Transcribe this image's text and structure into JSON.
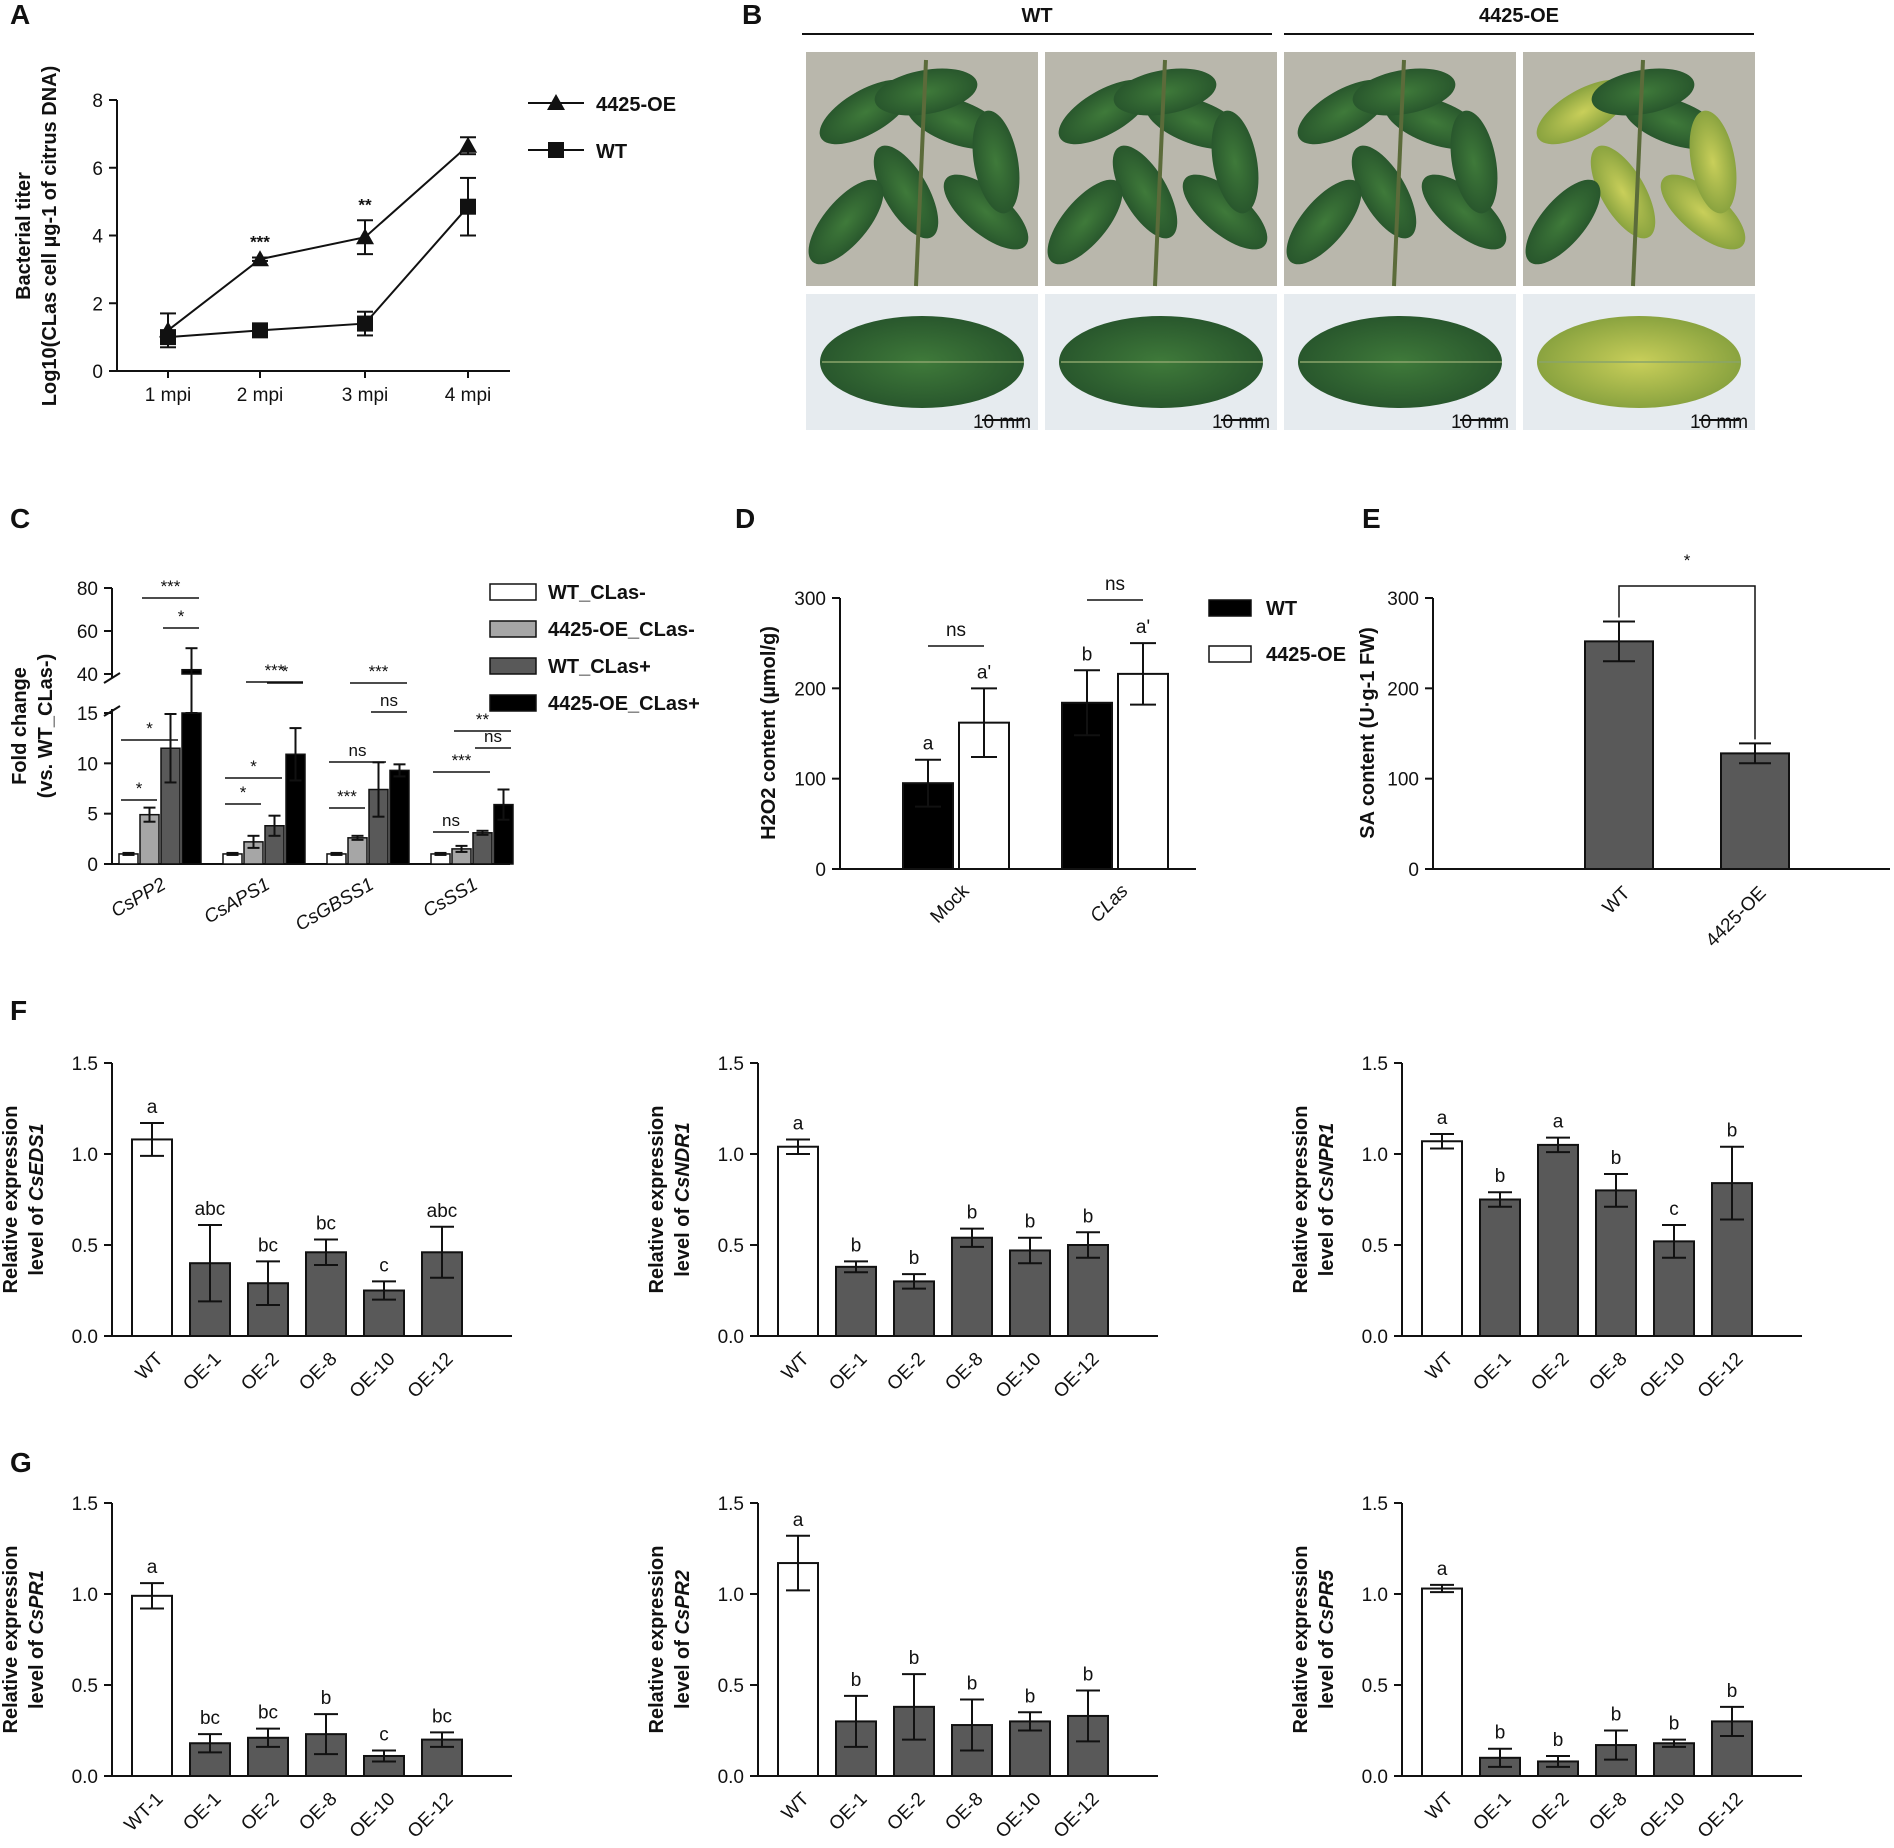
{
  "panel_labels": [
    "A",
    "B",
    "C",
    "D",
    "E",
    "F",
    "G"
  ],
  "colors": {
    "black": "#000000",
    "dark_gray": "#595959",
    "light_gray": "#a6a6a6",
    "white": "#ffffff"
  },
  "photo_panel": {
    "headers": [
      "WT",
      "4425-OE"
    ],
    "scale_bar": "10 mm"
  },
  "chart_data": [
    {
      "id": "A",
      "type": "line",
      "ylabel": "Bacterial titer Log10(CLas cell µg-1 of citrus DNA)",
      "ylabel_lines": [
        "Bacterial titer",
        "Log10(CLas cell µg-1 of citrus DNA)"
      ],
      "categories": [
        "1 mpi",
        "2 mpi",
        "3 mpi",
        "4 mpi"
      ],
      "ylim": [
        0,
        8
      ],
      "yticks": [
        0,
        2,
        4,
        6,
        8
      ],
      "series": [
        {
          "name": "4425-OE",
          "marker": "triangle",
          "values": [
            1.2,
            3.3,
            3.95,
            6.65
          ],
          "errors": [
            0.5,
            0.05,
            0.5,
            0.25
          ]
        },
        {
          "name": "WT",
          "marker": "square",
          "values": [
            1.0,
            1.2,
            1.4,
            4.85
          ],
          "errors": [
            0.1,
            0.1,
            0.35,
            0.85
          ]
        }
      ],
      "significance": [
        {
          "category": "2 mpi",
          "text": "***"
        },
        {
          "category": "3 mpi",
          "text": "**"
        }
      ],
      "legend_position": "top-right"
    },
    {
      "id": "C",
      "type": "bar",
      "ylabel_lines": [
        "Fold change",
        "(vs. WT_CLas-)"
      ],
      "categories": [
        "CsPP2",
        "CsAPS1",
        "CsGBSS1",
        "CsSS1"
      ],
      "axis_break": [
        15,
        40
      ],
      "yticks_lower": [
        0,
        5,
        10,
        15
      ],
      "yticks_upper": [
        40,
        60,
        80
      ],
      "series": [
        {
          "name": "WT_CLas-",
          "color": "#ffffff",
          "values": [
            1.0,
            1.0,
            1.0,
            1.0
          ],
          "errors": [
            0.1,
            0.1,
            0.1,
            0.1
          ]
        },
        {
          "name": "4425-OE_CLas-",
          "color": "#a6a6a6",
          "values": [
            4.9,
            2.2,
            2.6,
            1.5
          ],
          "errors": [
            0.7,
            0.6,
            0.2,
            0.3
          ]
        },
        {
          "name": "WT_CLas+",
          "color": "#595959",
          "values": [
            11.5,
            3.8,
            7.4,
            3.1
          ],
          "errors": [
            3.4,
            1.0,
            2.7,
            0.2
          ]
        },
        {
          "name": "4425-OE_CLas+",
          "color": "#000000",
          "values": [
            42,
            10.9,
            9.3,
            5.9
          ],
          "errors": [
            10,
            2.6,
            0.6,
            1.5
          ]
        }
      ],
      "significance": [
        {
          "category": "CsPP2",
          "pair": [
            0,
            1
          ],
          "text": "*"
        },
        {
          "category": "CsPP2",
          "pair": [
            0,
            2
          ],
          "text": "*"
        },
        {
          "category": "CsPP2",
          "pair": [
            2,
            3
          ],
          "text": "*"
        },
        {
          "category": "CsPP2",
          "pair": [
            1,
            3
          ],
          "text": "***"
        },
        {
          "category": "CsAPS1",
          "pair": [
            0,
            1
          ],
          "text": "*"
        },
        {
          "category": "CsAPS1",
          "pair": [
            0,
            2
          ],
          "text": "*"
        },
        {
          "category": "CsAPS1",
          "pair": [
            2,
            3
          ],
          "text": "*"
        },
        {
          "category": "CsAPS1",
          "pair": [
            1,
            3
          ],
          "text": "***"
        },
        {
          "category": "CsGBSS1",
          "pair": [
            0,
            1
          ],
          "text": "***"
        },
        {
          "category": "CsGBSS1",
          "pair": [
            0,
            2
          ],
          "text": "ns"
        },
        {
          "category": "CsGBSS1",
          "pair": [
            2,
            3
          ],
          "text": "ns"
        },
        {
          "category": "CsGBSS1",
          "pair": [
            1,
            3
          ],
          "text": "***"
        },
        {
          "category": "CsSS1",
          "pair": [
            0,
            1
          ],
          "text": "ns"
        },
        {
          "category": "CsSS1",
          "pair": [
            0,
            2
          ],
          "text": "***"
        },
        {
          "category": "CsSS1",
          "pair": [
            2,
            3
          ],
          "text": "ns"
        },
        {
          "category": "CsSS1",
          "pair": [
            1,
            3
          ],
          "text": "**"
        }
      ],
      "legend_position": "top-right"
    },
    {
      "id": "D",
      "type": "bar",
      "ylabel": "H2O2 content (µmol/g)",
      "categories": [
        "Mock",
        "CLas"
      ],
      "ylim": [
        0,
        300
      ],
      "yticks": [
        0,
        100,
        200,
        300
      ],
      "series": [
        {
          "name": "WT",
          "color": "#000000",
          "values": [
            95,
            184
          ],
          "errors": [
            26,
            36
          ],
          "letters": [
            "a",
            "b"
          ]
        },
        {
          "name": "4425-OE",
          "color": "#ffffff",
          "values": [
            162,
            216
          ],
          "errors": [
            38,
            34
          ],
          "letters": [
            "a'",
            "a'"
          ]
        }
      ],
      "significance": [
        {
          "category": "Mock",
          "text": "ns"
        },
        {
          "category": "CLas",
          "text": "ns"
        }
      ],
      "legend_position": "top-right"
    },
    {
      "id": "E",
      "type": "bar",
      "ylabel": "SA content (U·g-1 FW)",
      "categories": [
        "WT",
        "4425-OE"
      ],
      "ylim": [
        0,
        300
      ],
      "yticks": [
        0,
        100,
        200,
        300
      ],
      "series": [
        {
          "name": "SA content",
          "color": "#595959",
          "values": [
            252,
            128
          ],
          "errors": [
            22,
            11
          ]
        }
      ],
      "significance": [
        {
          "pair": [
            "WT",
            "4425-OE"
          ],
          "text": "*"
        }
      ]
    },
    {
      "id": "F1",
      "type": "bar",
      "ylabel_lines": [
        "Relative expression",
        "level of CsEDS1"
      ],
      "categories": [
        "WT",
        "OE-1",
        "OE-2",
        "OE-8",
        "OE-10",
        "OE-12"
      ],
      "ylim": [
        0,
        1.5
      ],
      "yticks": [
        0.0,
        0.5,
        1.0,
        1.5
      ],
      "values": [
        1.08,
        0.4,
        0.29,
        0.46,
        0.25,
        0.46
      ],
      "errors": [
        0.09,
        0.21,
        0.12,
        0.07,
        0.05,
        0.14
      ],
      "letters": [
        "a",
        "abc",
        "bc",
        "bc",
        "c",
        "abc"
      ]
    },
    {
      "id": "F2",
      "type": "bar",
      "ylabel_lines": [
        "Relative expression",
        "level of CsNDR1"
      ],
      "categories": [
        "WT",
        "OE-1",
        "OE-2",
        "OE-8",
        "OE-10",
        "OE-12"
      ],
      "ylim": [
        0,
        1.5
      ],
      "yticks": [
        0.0,
        0.5,
        1.0,
        1.5
      ],
      "values": [
        1.04,
        0.38,
        0.3,
        0.54,
        0.47,
        0.5
      ],
      "errors": [
        0.04,
        0.03,
        0.04,
        0.05,
        0.07,
        0.07
      ],
      "letters": [
        "a",
        "b",
        "b",
        "b",
        "b",
        "b"
      ]
    },
    {
      "id": "F3",
      "type": "bar",
      "ylabel_lines": [
        "Relative expression",
        "level of CsNPR1"
      ],
      "categories": [
        "WT",
        "OE-1",
        "OE-2",
        "OE-8",
        "OE-10",
        "OE-12"
      ],
      "ylim": [
        0,
        1.5
      ],
      "yticks": [
        0.0,
        0.5,
        1.0,
        1.5
      ],
      "values": [
        1.07,
        0.75,
        1.05,
        0.8,
        0.52,
        0.84
      ],
      "errors": [
        0.04,
        0.04,
        0.04,
        0.09,
        0.09,
        0.2
      ],
      "letters": [
        "a",
        "b",
        "a",
        "b",
        "c",
        "b"
      ]
    },
    {
      "id": "G1",
      "type": "bar",
      "ylabel_lines": [
        "Relative expression",
        "level of CsPR1"
      ],
      "categories": [
        "WT-1",
        "OE-1",
        "OE-2",
        "OE-8",
        "OE-10",
        "OE-12"
      ],
      "ylim": [
        0,
        1.5
      ],
      "yticks": [
        0.0,
        0.5,
        1.0,
        1.5
      ],
      "values": [
        0.99,
        0.18,
        0.21,
        0.23,
        0.11,
        0.2
      ],
      "errors": [
        0.07,
        0.05,
        0.05,
        0.11,
        0.03,
        0.04
      ],
      "letters": [
        "a",
        "bc",
        "bc",
        "b",
        "c",
        "bc"
      ]
    },
    {
      "id": "G2",
      "type": "bar",
      "ylabel_lines": [
        "Relative expression",
        "level of CsPR2"
      ],
      "categories": [
        "WT",
        "OE-1",
        "OE-2",
        "OE-8",
        "OE-10",
        "OE-12"
      ],
      "ylim": [
        0,
        1.5
      ],
      "yticks": [
        0.0,
        0.5,
        1.0,
        1.5
      ],
      "values": [
        1.17,
        0.3,
        0.38,
        0.28,
        0.3,
        0.33
      ],
      "errors": [
        0.15,
        0.14,
        0.18,
        0.14,
        0.05,
        0.14
      ],
      "letters": [
        "a",
        "b",
        "b",
        "b",
        "b",
        "b"
      ]
    },
    {
      "id": "G3",
      "type": "bar",
      "ylabel_lines": [
        "Relative expression",
        "level of CsPR5"
      ],
      "categories": [
        "WT",
        "OE-1",
        "OE-2",
        "OE-8",
        "OE-10",
        "OE-12"
      ],
      "ylim": [
        0,
        1.5
      ],
      "yticks": [
        0.0,
        0.5,
        1.0,
        1.5
      ],
      "values": [
        1.03,
        0.1,
        0.08,
        0.17,
        0.18,
        0.3
      ],
      "errors": [
        0.02,
        0.05,
        0.03,
        0.08,
        0.02,
        0.08
      ],
      "letters": [
        "a",
        "b",
        "b",
        "b",
        "b",
        "b"
      ]
    }
  ]
}
